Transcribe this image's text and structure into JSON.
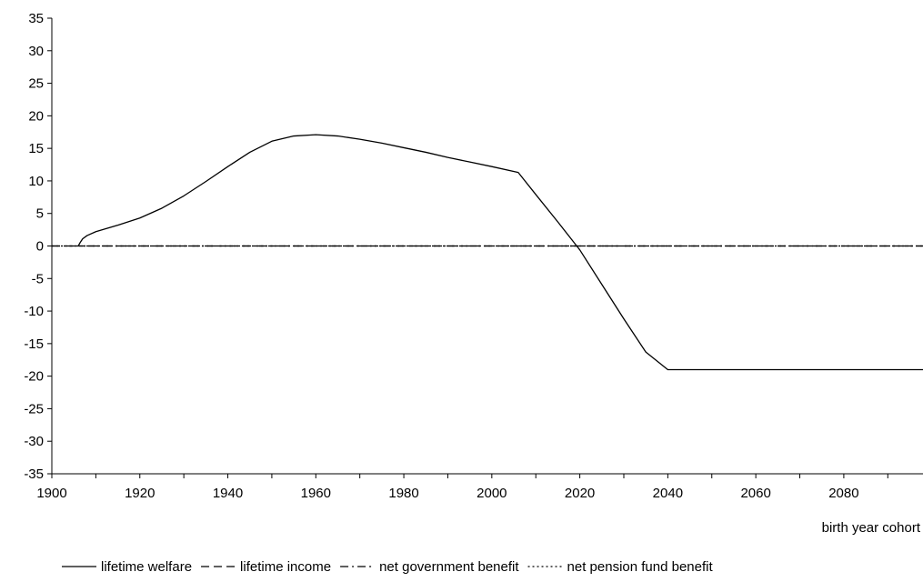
{
  "chart_data": {
    "type": "line",
    "title": "",
    "xlabel": "birth year cohort",
    "ylabel": "",
    "xlim": [
      1900,
      2098
    ],
    "ylim": [
      -35,
      35
    ],
    "x_ticks": [
      "1900",
      "1920",
      "1940",
      "1960",
      "1980",
      "2000",
      "2020",
      "2040",
      "2060",
      "2080"
    ],
    "y_ticks": [
      "35",
      "30",
      "25",
      "20",
      "15",
      "10",
      "5",
      "0",
      "-5",
      "-10",
      "-15",
      "-20",
      "-25",
      "-30",
      "-35"
    ],
    "grid": false,
    "legend_position": "bottom",
    "series": [
      {
        "name": "lifetime welfare",
        "style": "solid",
        "x": [
          1906,
          1906.5,
          1907,
          1908,
          1910,
          1915,
          1920,
          1925,
          1930,
          1935,
          1940,
          1945,
          1950,
          1955,
          1960,
          1965,
          1970,
          1975,
          1980,
          1985,
          1990,
          1995,
          2000,
          2006,
          2010,
          2015,
          2020,
          2025,
          2030,
          2035,
          2040,
          2050,
          2060,
          2070,
          2080,
          2090,
          2098
        ],
        "y": [
          0,
          0.6,
          1.1,
          1.6,
          2.2,
          3.2,
          4.3,
          5.8,
          7.7,
          9.9,
          12.2,
          14.4,
          16.1,
          16.9,
          17.1,
          16.9,
          16.4,
          15.8,
          15.1,
          14.4,
          13.6,
          12.9,
          12.2,
          11.3,
          7.9,
          3.7,
          -0.6,
          -5.9,
          -11.2,
          -16.3,
          -19,
          -19,
          -19,
          -19,
          -19,
          -19,
          -19
        ]
      },
      {
        "name": "lifetime income",
        "style": "dashed",
        "x": [
          1900,
          2098
        ],
        "y": [
          0,
          0
        ]
      },
      {
        "name": "net government benefit",
        "style": "dashdot",
        "x": [
          1900,
          2098
        ],
        "y": [
          0,
          0
        ]
      },
      {
        "name": "net pension fund benefit",
        "style": "dotted",
        "x": [
          1900,
          2098
        ],
        "y": [
          0,
          0
        ]
      }
    ]
  }
}
